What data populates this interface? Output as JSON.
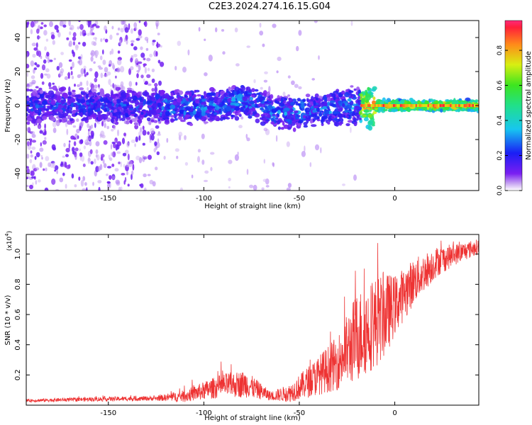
{
  "title": "C2E3.2024.274.16.15.G04",
  "chart_data": [
    {
      "type": "heatmap",
      "name": "spectrogram",
      "xlabel": "Height of straight line (km)",
      "ylabel": "Frequency (Hz)",
      "xlim": [
        -193,
        44
      ],
      "ylim": [
        -50,
        50
      ],
      "xticks": [
        -150,
        -100,
        -50,
        0
      ],
      "yticks": [
        -40,
        -20,
        0,
        20,
        40
      ],
      "colorbar": {
        "label": "Normalized spectral amplitude",
        "range": [
          0.0,
          0.97
        ],
        "ticks": [
          0.0,
          0.2,
          0.4,
          0.6,
          0.8
        ]
      },
      "ridge": [
        {
          "x": -185,
          "y": 0
        },
        {
          "x": -150,
          "y": 0
        },
        {
          "x": -120,
          "y": -1
        },
        {
          "x": -100,
          "y": -1
        },
        {
          "x": -80,
          "y": 3
        },
        {
          "x": -60,
          "y": -4
        },
        {
          "x": -40,
          "y": -3
        },
        {
          "x": -25,
          "y": 0
        },
        {
          "x": -15,
          "y": 0
        },
        {
          "x": 42,
          "y": 0
        }
      ]
    },
    {
      "type": "line",
      "name": "snr",
      "xlabel": "Height of straight line (km)",
      "ylabel": "SNR (10 * v/v)",
      "y_multiplier": "(x10^4)",
      "y_multiplier_base": "(x10",
      "y_multiplier_exp": "4",
      "xlim": [
        -193,
        44
      ],
      "ylim": [
        0,
        1.13
      ],
      "xticks": [
        -150,
        -100,
        -50,
        0
      ],
      "yticks": [
        0.2,
        0.4,
        0.6,
        0.8,
        1.0
      ],
      "series": [
        {
          "name": "SNR",
          "color": "#ee3333",
          "envelope": [
            {
              "x": -193,
              "base": 0.03,
              "amp": 0.01
            },
            {
              "x": -175,
              "base": 0.035,
              "amp": 0.012
            },
            {
              "x": -155,
              "base": 0.04,
              "amp": 0.015
            },
            {
              "x": -125,
              "base": 0.045,
              "amp": 0.015
            },
            {
              "x": -110,
              "base": 0.06,
              "amp": 0.04
            },
            {
              "x": -90,
              "base": 0.13,
              "amp": 0.08
            },
            {
              "x": -78,
              "base": 0.14,
              "amp": 0.09
            },
            {
              "x": -65,
              "base": 0.06,
              "amp": 0.03
            },
            {
              "x": -55,
              "base": 0.08,
              "amp": 0.06
            },
            {
              "x": -42,
              "base": 0.18,
              "amp": 0.12
            },
            {
              "x": -30,
              "base": 0.28,
              "amp": 0.18
            },
            {
              "x": -20,
              "base": 0.45,
              "amp": 0.3
            },
            {
              "x": -10,
              "base": 0.55,
              "amp": 0.3
            },
            {
              "x": -5,
              "base": 0.6,
              "amp": 0.28
            },
            {
              "x": 0,
              "base": 0.66,
              "amp": 0.2
            },
            {
              "x": 10,
              "base": 0.82,
              "amp": 0.15
            },
            {
              "x": 22,
              "base": 0.95,
              "amp": 0.1
            },
            {
              "x": 32,
              "base": 1.0,
              "amp": 0.07
            },
            {
              "x": 44,
              "base": 1.05,
              "amp": 0.05
            }
          ]
        }
      ]
    }
  ]
}
